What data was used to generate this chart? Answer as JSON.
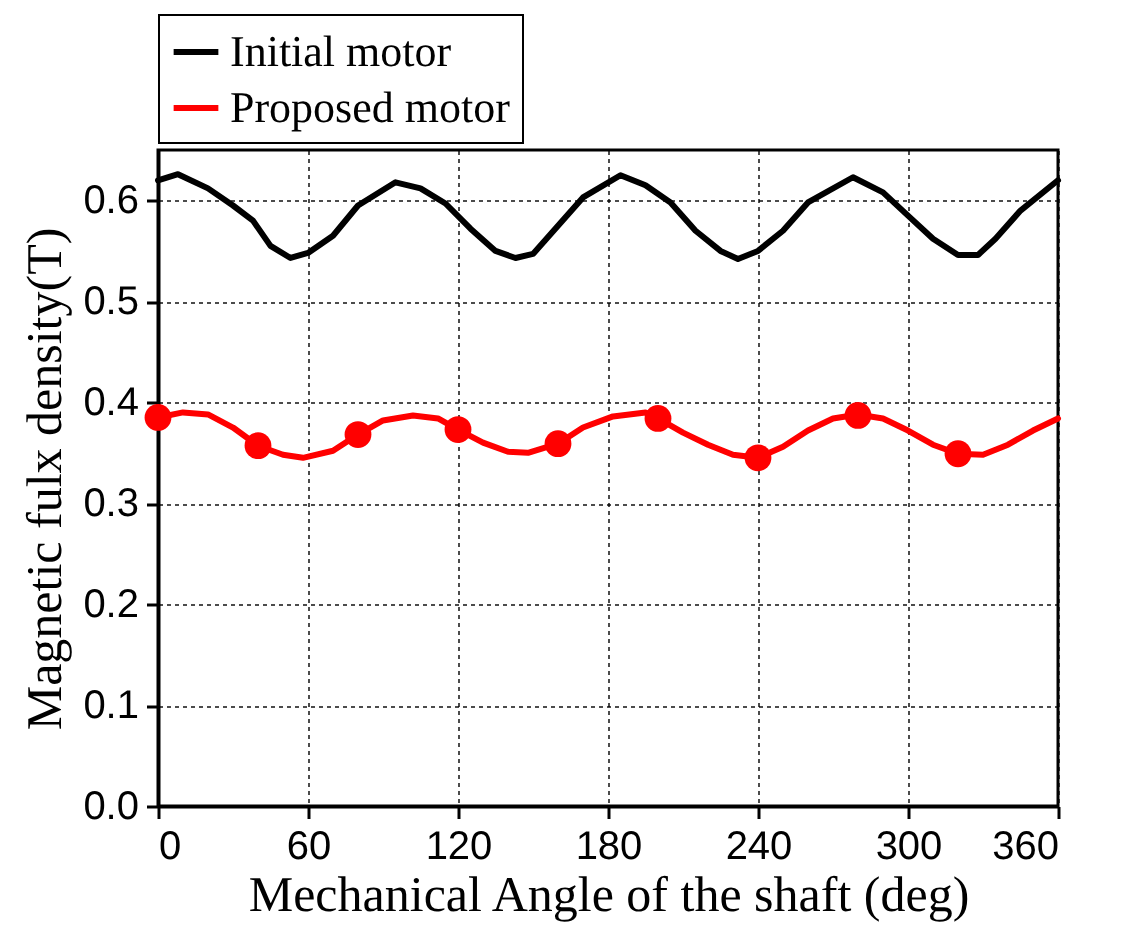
{
  "chart_data": {
    "type": "line",
    "xlabel": "Mechanical Angle of the shaft (deg)",
    "ylabel": "Magnetic fulx density(T)",
    "xlim": [
      0,
      360
    ],
    "xticks": [
      0,
      60,
      120,
      180,
      240,
      300,
      360
    ],
    "ylim": [
      0,
      0.65
    ],
    "yticks": [
      {
        "value": 0,
        "label": "0.0"
      },
      {
        "value": 0.1,
        "label": "0.1"
      },
      {
        "value": 0.2,
        "label": "0.2"
      },
      {
        "value": 0.3,
        "label": "0.3"
      },
      {
        "value": 0.4,
        "label": "0.4"
      },
      {
        "value": 0.5,
        "label": "0.5"
      },
      {
        "value": 0.6,
        "label": "0.6"
      }
    ],
    "grid": true,
    "legend": "top left",
    "line_style": "solid",
    "series": [
      {
        "name": "Initial motor",
        "color": "#000000",
        "marker": "none",
        "x": [
          0,
          8,
          20,
          30,
          38,
          45,
          53,
          60,
          70,
          80,
          95,
          105,
          115,
          125,
          135,
          143,
          150,
          160,
          170,
          185,
          195,
          205,
          215,
          225,
          232,
          240,
          250,
          260,
          278,
          290,
          300,
          310,
          320,
          328,
          335,
          345,
          360
        ],
        "values": [
          0.62,
          0.626,
          0.612,
          0.595,
          0.58,
          0.555,
          0.543,
          0.548,
          0.565,
          0.595,
          0.618,
          0.612,
          0.597,
          0.572,
          0.55,
          0.543,
          0.547,
          0.575,
          0.603,
          0.625,
          0.615,
          0.598,
          0.57,
          0.55,
          0.542,
          0.55,
          0.57,
          0.598,
          0.623,
          0.608,
          0.585,
          0.562,
          0.546,
          0.546,
          0.562,
          0.59,
          0.62
        ]
      },
      {
        "name": "Proposed motor",
        "color": "#ff0000",
        "marker": "none",
        "x": [
          0,
          10,
          20,
          30,
          40,
          50,
          58,
          70,
          80,
          90,
          102,
          112,
          120,
          130,
          140,
          148,
          160,
          170,
          182,
          195,
          200,
          210,
          220,
          230,
          240,
          250,
          260,
          270,
          280,
          290,
          300,
          310,
          320,
          330,
          340,
          350,
          360
        ],
        "values": [
          0.385,
          0.39,
          0.388,
          0.375,
          0.357,
          0.348,
          0.345,
          0.352,
          0.368,
          0.382,
          0.387,
          0.384,
          0.373,
          0.36,
          0.351,
          0.35,
          0.359,
          0.375,
          0.386,
          0.39,
          0.384,
          0.37,
          0.358,
          0.348,
          0.345,
          0.356,
          0.372,
          0.384,
          0.388,
          0.384,
          0.372,
          0.358,
          0.349,
          0.348,
          0.358,
          0.372,
          0.384
        ]
      },
      {
        "color": "#ff0000",
        "type": "scatter",
        "marker": "circle",
        "x": [
          0,
          40,
          80,
          120,
          160,
          200,
          240,
          280,
          320
        ],
        "values": [
          0.385,
          0.357,
          0.368,
          0.373,
          0.359,
          0.384,
          0.345,
          0.387,
          0.349
        ]
      }
    ]
  }
}
